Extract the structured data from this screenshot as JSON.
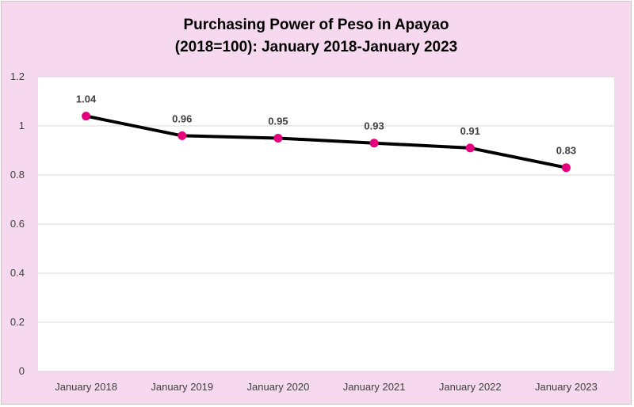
{
  "chart_data": {
    "type": "line",
    "title": "Purchasing Power of Peso in Apayao (2018=100): January 2018-January 2023",
    "title_lines": [
      "Purchasing Power of Peso in Apayao",
      "(2018=100): January 2018-January 2023"
    ],
    "categories": [
      "January 2018",
      "January 2019",
      "January 2020",
      "January 2021",
      "January 2022",
      "January 2023"
    ],
    "series": [
      {
        "values": [
          1.04,
          0.96,
          0.95,
          0.93,
          0.91,
          0.83
        ]
      }
    ],
    "data_labels": [
      "1.04",
      "0.96",
      "0.95",
      "0.93",
      "0.91",
      "0.83"
    ],
    "y_ticks": [
      "0",
      "0.2",
      "0.4",
      "0.6",
      "0.8",
      "1",
      "1.2"
    ],
    "ylim": [
      0,
      1.2
    ],
    "xlabel": "",
    "ylabel": "",
    "grid": true,
    "legend": "none",
    "colors": {
      "background": "#f6d9ee",
      "plot_area": "#ffffff",
      "line": "#000000",
      "marker": "#e6007e",
      "gridline": "#d9d9d9"
    }
  }
}
